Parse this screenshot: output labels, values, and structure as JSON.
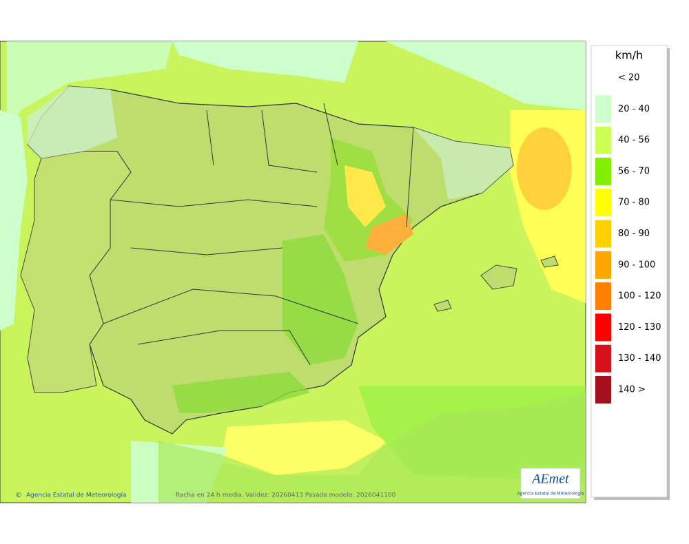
{
  "map": {
    "copyright": "©",
    "credit": "Agencia Estatal de Meteorología",
    "caption": "Racha en 24 h media. Validez: 20260413 Pasada modelo: 2026041100",
    "logo": {
      "name": "AEmet",
      "subtitle": "Agencia Estatal de Meteorología"
    }
  },
  "legend": {
    "unit": "km/h",
    "items": [
      {
        "label": "< 20"
      },
      {
        "label": "20 - 40",
        "color": "#ccffcc"
      },
      {
        "label": "40 - 56",
        "color": "#ccff55"
      },
      {
        "label": "56 - 70",
        "color": "#80f000"
      },
      {
        "label": "70 - 80",
        "color": "#ffff00"
      },
      {
        "label": "80 - 90",
        "color": "#ffd000"
      },
      {
        "label": "90 - 100",
        "color": "#ffa500"
      },
      {
        "label": "100 - 120",
        "color": "#ff8000"
      },
      {
        "label": "120 - 130",
        "color": "#ff0000"
      },
      {
        "label": "130 - 140",
        "color": "#d8101a"
      },
      {
        "label": "140 >",
        "color": "#a51020"
      }
    ]
  }
}
